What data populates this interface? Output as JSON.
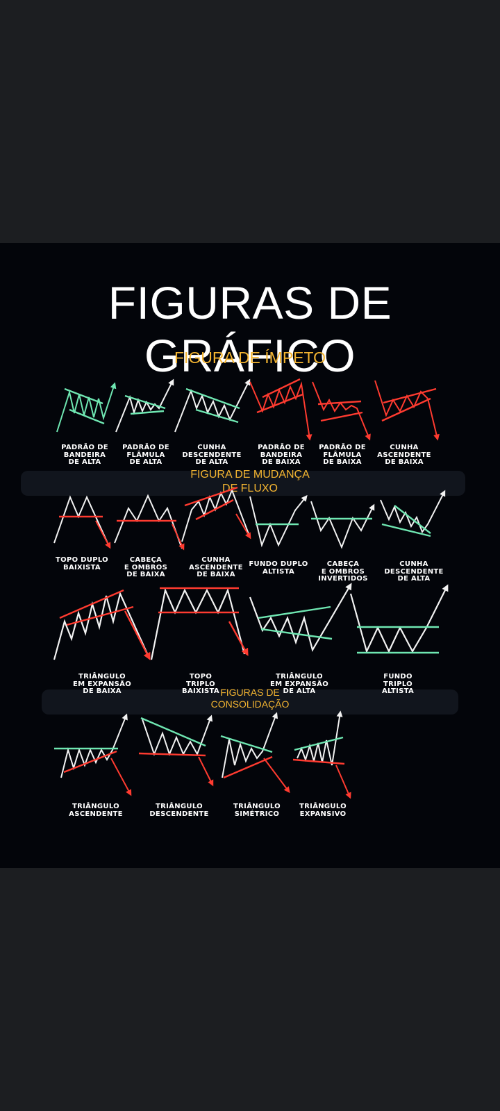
{
  "title": "FIGURAS DE GRÁFICO",
  "colors": {
    "green": "#6fe7b2",
    "red": "#ff3b30",
    "white": "#f2f2f2",
    "gold": "#f4b531",
    "bg": "#03050a"
  },
  "sections": [
    {
      "title": "FIGURA DE ÍMPETO"
    },
    {
      "line1": "FIGURA DE MUDANÇA",
      "line2": "DE FLUXO"
    },
    {
      "line1": "FIGURAS DE",
      "line2": "CONSOLIDAÇÃO"
    }
  ],
  "patterns": {
    "p1": "PADRÃO DE\nBANDEIRA\nDE ALTA",
    "p2": "PADRÃO DE\nFLÂMULA\nDE ALTA",
    "p3": "CUNHA\nDESCENDENTE\nDE ALTA",
    "p4": "PADRÃO DE\nBANDEIRA\nDE BAIXA",
    "p5": "PADRÃO DE\nFLÂMULA\nDE BAIXA",
    "p6": "CUNHA\nASCENDENTE\nDE BAIXA",
    "p7": "TOPO DUPLO\nBAIXISTA",
    "p8": "CABEÇA\nE OMBROS\nDE BAIXA",
    "p9": "CUNHA\nASCENDENTE\nDE BAIXA",
    "p10": "FUNDO DUPLO\nALTISTA",
    "p11": "CABEÇA\nE OMBROS\nINVERTIDOS",
    "p12": "CUNHA\nDESCENDENTE\nDE ALTA",
    "p13": "TRIÂNGULO\nEM EXPANSÃO\nDE BAIXA",
    "p14": "TOPO\nTRIPLO\nBAIXISTA",
    "p15": "TRIÂNGULO\nEM EXPANSÃO\nDE ALTA",
    "p16": "FUNDO\nTRIPLO\nALTISTA",
    "p17": "TRIÂNGULO\nASCENDENTE",
    "p18": "TRIÂNGULO\nDESCENDENTE",
    "p19": "TRIÂNGULO\nSIMÉTRICO",
    "p20": "TRIÂNGULO\nEXPANSIVO"
  }
}
